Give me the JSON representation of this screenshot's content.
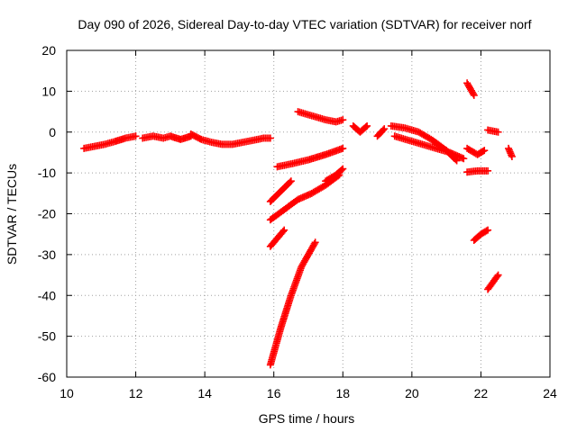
{
  "chart_data": {
    "type": "scatter",
    "title": "Day 090 of 2026, Sidereal Day-to-day VTEC variation (SDTVAR) for receiver norf",
    "xlabel": "GPS time / hours",
    "ylabel": "SDTVAR / TECUs",
    "xlim": [
      10,
      24
    ],
    "ylim": [
      -60,
      20
    ],
    "xticks": [
      10,
      12,
      14,
      16,
      18,
      20,
      22,
      24
    ],
    "yticks": [
      -60,
      -50,
      -40,
      -30,
      -20,
      -10,
      0,
      10,
      20
    ],
    "xtick_labels": [
      "10",
      "12",
      "14",
      "16",
      "18",
      "20",
      "22",
      "24"
    ],
    "ytick_labels": [
      "-60",
      "-50",
      "-40",
      "-30",
      "-20",
      "-10",
      "0",
      "10",
      "20"
    ],
    "grid": true,
    "grid_style": "dotted",
    "marker": "plus",
    "color": "#ff0000",
    "series": [
      {
        "x": [
          10.5,
          10.8,
          11.1,
          11.4,
          11.7,
          12.0
        ],
        "y": [
          -4,
          -3.5,
          -3,
          -2.3,
          -1.5,
          -1
        ]
      },
      {
        "x": [
          12.2,
          12.5,
          12.8,
          13.0,
          13.3,
          13.6
        ],
        "y": [
          -1.5,
          -1,
          -1.5,
          -1,
          -1.8,
          -1
        ]
      },
      {
        "x": [
          13.6,
          13.9,
          14.2,
          14.5,
          14.8,
          15.1,
          15.4,
          15.7,
          15.9
        ],
        "y": [
          -0.5,
          -1.8,
          -2.5,
          -3,
          -3,
          -2.5,
          -2,
          -1.5,
          -1.5
        ]
      },
      {
        "x": [
          15.9,
          16.1,
          16.3
        ],
        "y": [
          -28,
          -26,
          -24
        ]
      },
      {
        "x": [
          15.9,
          16.2,
          16.5
        ],
        "y": [
          -17,
          -14.5,
          -12
        ]
      },
      {
        "x": [
          15.9,
          16.3,
          16.7,
          17.1,
          17.5,
          17.9
        ],
        "y": [
          -21.5,
          -19,
          -16.5,
          -15,
          -13,
          -10.5
        ]
      },
      {
        "x": [
          15.9,
          16.2,
          16.5,
          16.8,
          17.2
        ],
        "y": [
          -57,
          -48,
          -40,
          -33,
          -27
        ]
      },
      {
        "x": [
          16.1,
          16.5,
          17.0,
          17.5,
          18.0
        ],
        "y": [
          -8.5,
          -7.8,
          -6.8,
          -5.5,
          -4
        ]
      },
      {
        "x": [
          16.7,
          17.1,
          17.5,
          17.8,
          18.0
        ],
        "y": [
          5,
          4,
          3,
          2.5,
          3
        ]
      },
      {
        "x": [
          17.5,
          17.8,
          18.0
        ],
        "y": [
          -12,
          -10.5,
          -9
        ]
      },
      {
        "x": [
          18.3,
          18.5,
          18.7
        ],
        "y": [
          1.5,
          0,
          1.5
        ]
      },
      {
        "x": [
          19.0,
          19.2
        ],
        "y": [
          -1,
          0.8
        ]
      },
      {
        "x": [
          19.4,
          19.8,
          20.2,
          20.6,
          21.0,
          21.3
        ],
        "y": [
          1.5,
          1,
          0,
          -2,
          -4.5,
          -7
        ]
      },
      {
        "x": [
          19.5,
          19.9,
          20.3,
          20.7,
          21.1,
          21.5
        ],
        "y": [
          -1,
          -2,
          -3,
          -4,
          -5,
          -6.5
        ]
      },
      {
        "x": [
          21.6,
          21.8
        ],
        "y": [
          12,
          9
        ]
      },
      {
        "x": [
          21.6,
          21.9,
          22.1
        ],
        "y": [
          -4,
          -5.5,
          -4.5
        ]
      },
      {
        "x": [
          21.6,
          21.9,
          22.2
        ],
        "y": [
          -9.8,
          -9.5,
          -9.5
        ]
      },
      {
        "x": [
          21.8,
          22.0,
          22.2
        ],
        "y": [
          -26.5,
          -25,
          -24
        ]
      },
      {
        "x": [
          22.2,
          22.5
        ],
        "y": [
          -38.5,
          -35
        ]
      },
      {
        "x": [
          22.2,
          22.5
        ],
        "y": [
          0.5,
          0
        ]
      },
      {
        "x": [
          22.8,
          22.9
        ],
        "y": [
          -4,
          -6
        ]
      }
    ]
  }
}
